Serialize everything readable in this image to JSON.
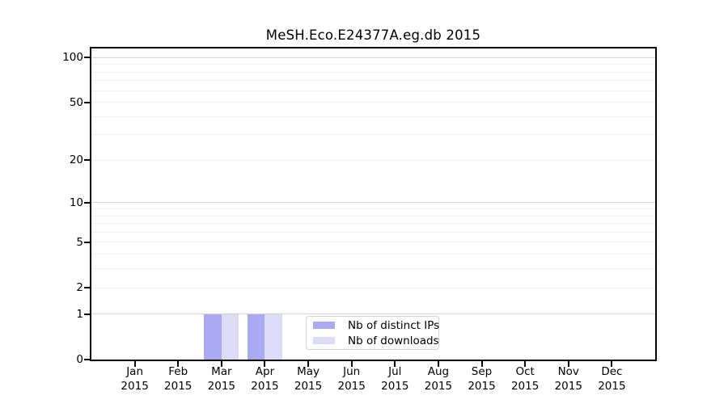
{
  "chart_data": {
    "type": "bar",
    "title": "MeSH.Eco.E24377A.eg.db 2015",
    "categories": [
      "Jan",
      "Feb",
      "Mar",
      "Apr",
      "May",
      "Jun",
      "Jul",
      "Aug",
      "Sep",
      "Oct",
      "Nov",
      "Dec"
    ],
    "x_tick_year": "2015",
    "series": [
      {
        "name": "Nb of distinct IPs",
        "color": "#aaaaf2",
        "values": [
          0,
          0,
          1,
          1,
          0,
          0,
          0,
          0,
          0,
          0,
          0,
          0
        ]
      },
      {
        "name": "Nb of downloads",
        "color": "#dcdcf8",
        "values": [
          0,
          0,
          1,
          1,
          0,
          0,
          0,
          0,
          0,
          0,
          0,
          0
        ]
      }
    ],
    "y_axis": {
      "scale": "log1p",
      "ylim": [
        0,
        115
      ],
      "ticks": [
        0,
        1,
        2,
        5,
        10,
        20,
        50,
        100
      ],
      "major_gridlines": [
        1,
        10,
        100
      ],
      "minor_gridlines": [
        2,
        3,
        4,
        5,
        6,
        7,
        8,
        9,
        20,
        30,
        40,
        50,
        60,
        70,
        80,
        90
      ]
    },
    "legend": {
      "position": "bottom-center",
      "entries": [
        "Nb of distinct IPs",
        "Nb of downloads"
      ]
    },
    "grid": "horizontal",
    "colors": {
      "background": "#ffffff",
      "axis": "#000000",
      "major_grid": "#d6d6d6",
      "minor_grid": "#f1f1f1",
      "legend_border": "#d3d3d3",
      "bar_distinct_ips": "#aaaaf2",
      "bar_downloads": "#dcdcf8"
    }
  }
}
